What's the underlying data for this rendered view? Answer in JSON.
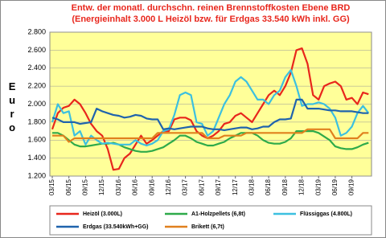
{
  "chart_data": {
    "type": "line",
    "title": "Entw. der monatl. durchschn. reinen Brennstoffkosten Ebene BRD",
    "subtitle": "(Energieinhalt 3.000 L Heizöl bzw. für Erdgas 33.540 kWh inkl. GG)",
    "y_label": "Euro",
    "categories": [
      "03/15",
      null,
      null,
      "06/15",
      null,
      null,
      "09/15",
      null,
      null,
      "12/15",
      null,
      null,
      "03/16",
      null,
      null,
      "06/16",
      null,
      null,
      "09/16",
      null,
      null,
      "12/16",
      null,
      null,
      "03/17",
      null,
      null,
      "06/17",
      null,
      null,
      "09/17",
      null,
      null,
      "12/17",
      null,
      null,
      "03/18",
      null,
      null,
      "06/18",
      null,
      null,
      "09/18",
      null,
      null,
      "12/18",
      null,
      null,
      "03/19",
      null,
      null,
      "06/19",
      null,
      null,
      "09/19",
      null,
      null,
      null
    ],
    "ylim": [
      1200,
      2800
    ],
    "yticks": [
      {
        "value": 1200,
        "label": "1.200"
      },
      {
        "value": 1400,
        "label": "1.400"
      },
      {
        "value": 1600,
        "label": "1.600"
      },
      {
        "value": 1800,
        "label": "1.800"
      },
      {
        "value": 2000,
        "label": "2.000"
      },
      {
        "value": 2200,
        "label": "2.200"
      },
      {
        "value": 2400,
        "label": "2.400"
      },
      {
        "value": 2600,
        "label": "2.600"
      },
      {
        "value": 2800,
        "label": "2.800"
      }
    ],
    "grid": true,
    "series": [
      {
        "name": "Heizöl (3.000L)",
        "color": "#e8261c",
        "values": [
          1720,
          1900,
          1960,
          1980,
          2050,
          2000,
          1900,
          1780,
          1700,
          1650,
          1500,
          1270,
          1280,
          1400,
          1450,
          1550,
          1650,
          1560,
          1600,
          1650,
          1700,
          1700,
          1830,
          1850,
          1850,
          1820,
          1700,
          1650,
          1620,
          1650,
          1700,
          1780,
          1800,
          1870,
          1900,
          1850,
          1800,
          1900,
          2000,
          2100,
          2150,
          2100,
          2200,
          2350,
          2600,
          2620,
          2450,
          2100,
          2050,
          2200,
          2230,
          2250,
          2200,
          2050,
          2070,
          2000,
          2130,
          2110
        ]
      },
      {
        "name": "A1-Holzpellets (6,8t)",
        "color": "#2eaa4a",
        "values": [
          1680,
          1680,
          1650,
          1600,
          1550,
          1530,
          1530,
          1540,
          1550,
          1560,
          1560,
          1570,
          1550,
          1520,
          1500,
          1480,
          1470,
          1470,
          1480,
          1500,
          1520,
          1560,
          1600,
          1650,
          1650,
          1620,
          1580,
          1560,
          1540,
          1540,
          1560,
          1580,
          1620,
          1650,
          1680,
          1680,
          1680,
          1650,
          1600,
          1570,
          1560,
          1560,
          1580,
          1620,
          1700,
          1700,
          1700,
          1700,
          1680,
          1640,
          1600,
          1530,
          1510,
          1500,
          1500,
          1520,
          1550,
          1570
        ]
      },
      {
        "name": "Flüssiggas (4.800L)",
        "color": "#3cc0e0",
        "values": [
          1800,
          2000,
          1900,
          1920,
          1650,
          1700,
          1550,
          1650,
          1600,
          1560,
          1570,
          1560,
          1550,
          1550,
          1550,
          1600,
          1560,
          1540,
          1560,
          1600,
          1700,
          1720,
          1880,
          2100,
          2130,
          2100,
          1800,
          1780,
          1650,
          1700,
          1850,
          2000,
          2100,
          2250,
          2300,
          2250,
          2150,
          2050,
          2050,
          2000,
          2100,
          2150,
          2300,
          2380,
          2200,
          1980,
          2000,
          2000,
          2020,
          2000,
          1950,
          1850,
          1650,
          1680,
          1750,
          1900,
          1980,
          1900
        ]
      },
      {
        "name": "Erdgas (33.540kWh+GG)",
        "color": "#1f63ad",
        "values": [
          1850,
          1830,
          1800,
          1800,
          1800,
          1780,
          1790,
          1800,
          1950,
          1920,
          1900,
          1880,
          1870,
          1850,
          1860,
          1880,
          1870,
          1840,
          1830,
          1830,
          1720,
          1730,
          1720,
          1730,
          1740,
          1750,
          1750,
          1750,
          1730,
          1720,
          1720,
          1710,
          1720,
          1730,
          1740,
          1740,
          1720,
          1730,
          1750,
          1750,
          1800,
          1830,
          1830,
          1840,
          2050,
          2050,
          1950,
          1950,
          1950,
          1940,
          1930,
          1930,
          1920,
          1920,
          1920,
          1910,
          1900,
          1900
        ]
      },
      {
        "name": "Brikett (6,7t)",
        "color": "#e0801e",
        "values": [
          1650,
          1650,
          1650,
          1580,
          1620,
          1620,
          1620,
          1620,
          1620,
          1620,
          1620,
          1620,
          1620,
          1620,
          1620,
          1620,
          1620,
          1620,
          1620,
          1680,
          1680,
          1680,
          1680,
          1680,
          1680,
          1680,
          1680,
          1680,
          1620,
          1620,
          1620,
          1650,
          1650,
          1650,
          1650,
          1680,
          1680,
          1680,
          1680,
          1680,
          1680,
          1680,
          1680,
          1680,
          1680,
          1680,
          1720,
          1720,
          1720,
          1720,
          1720,
          1620,
          1620,
          1620,
          1620,
          1620,
          1680,
          1680
        ]
      }
    ]
  }
}
